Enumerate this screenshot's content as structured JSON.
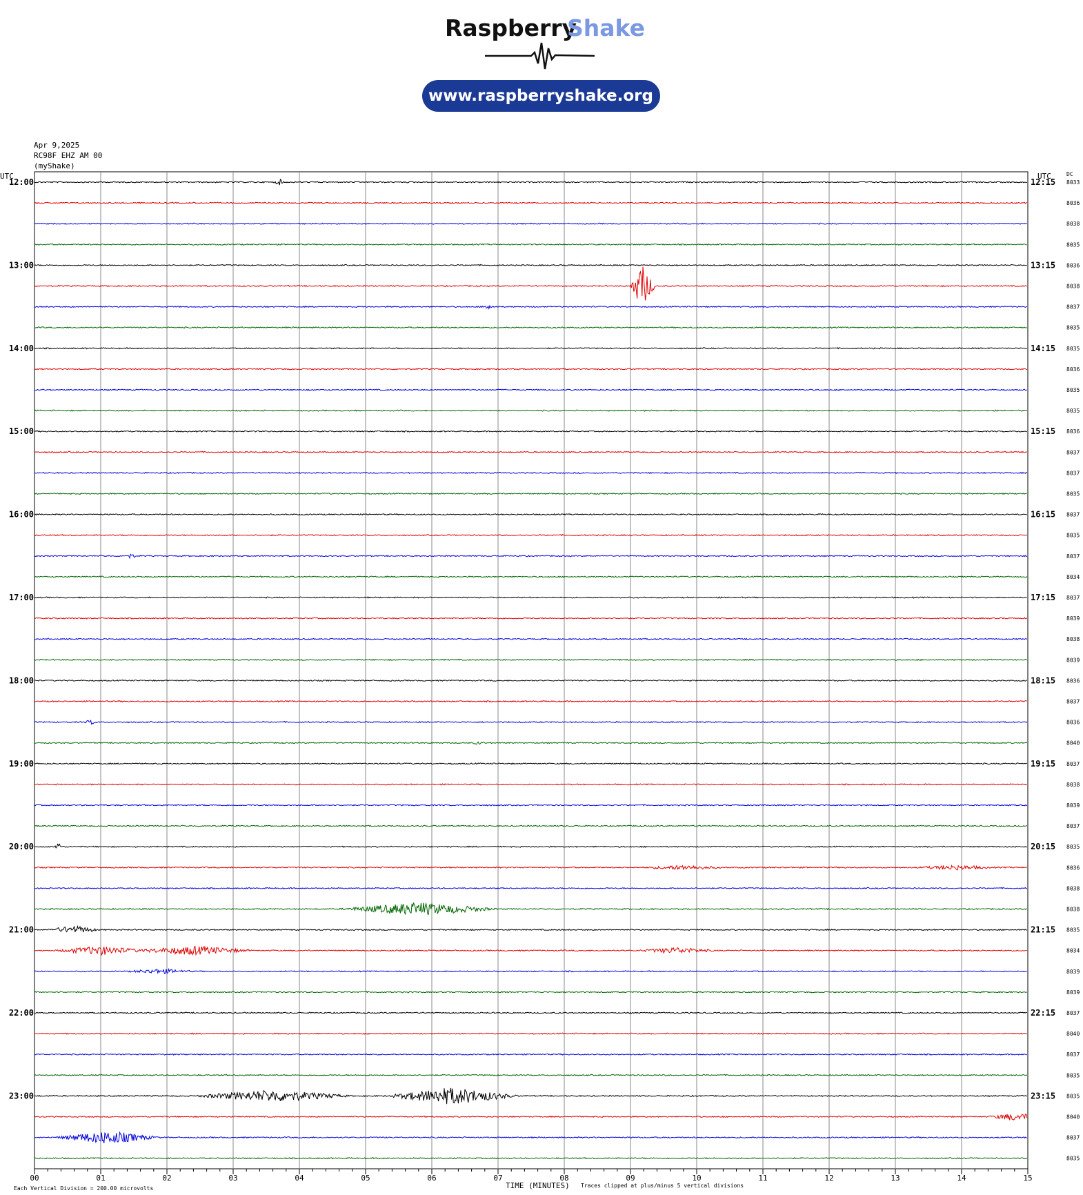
{
  "header": {
    "brand_word1": "Raspberry",
    "brand_word2": "Shake",
    "url": "www.raspberryshake.org",
    "brand_color_dark": "#111111",
    "brand_color_accent": "#7b98e2",
    "url_button_color": "#1b3a96"
  },
  "station": {
    "date": "Apr 9,2025",
    "channel": "RC98F EHZ AM 00",
    "network": "(myShake)"
  },
  "footer": {
    "vertical_division": "Each Vertical Division =  200.00 microvolts",
    "xlabel": "TIME (MINUTES)",
    "clip_note": "Traces clipped at plus/minus 5 vertical divisions"
  },
  "chart_data": {
    "type": "line",
    "title": "",
    "xlabel": "TIME (MINUTES)",
    "ylabel": "",
    "left_axis_title": "UTC",
    "right_axis_title": "UTC",
    "dc_header": "DC",
    "xlim": [
      0,
      15
    ],
    "x_tick_labels": [
      "00",
      "01",
      "02",
      "03",
      "04",
      "05",
      "06",
      "07",
      "08",
      "09",
      "10",
      "11",
      "12",
      "13",
      "14",
      "15"
    ],
    "grid": true,
    "trace_colors": [
      "#000000",
      "#dd0000",
      "#0000dd",
      "#006600"
    ],
    "hour_labels_left": [
      "12:00",
      "13:00",
      "14:00",
      "15:00",
      "16:00",
      "17:00",
      "18:00",
      "19:00",
      "20:00",
      "21:00",
      "22:00",
      "23:00"
    ],
    "hour_labels_right": [
      "12:15",
      "13:15",
      "14:15",
      "15:15",
      "16:15",
      "17:15",
      "18:15",
      "19:15",
      "20:15",
      "21:15",
      "22:15",
      "23:15"
    ],
    "dc_values": [
      "8033",
      "8036",
      "8038",
      "8035",
      "8036",
      "8038",
      "8037",
      "8035",
      "8035",
      "8036",
      "8035",
      "8035",
      "8036",
      "8037",
      "8037",
      "8035",
      "8037",
      "8035",
      "8037",
      "8034",
      "8037",
      "8039",
      "8038",
      "8039",
      "8036",
      "8037",
      "8036",
      "8040",
      "8037",
      "8038",
      "8039",
      "8037",
      "8035",
      "8036",
      "8038",
      "8038",
      "8035",
      "8034",
      "8039",
      "8039",
      "8037",
      "8040",
      "8037",
      "8035",
      "8035",
      "8040",
      "8037",
      "8035"
    ],
    "events": [
      {
        "trace": 0,
        "minute": 3.7,
        "amp": 3.5,
        "dur": 0.1
      },
      {
        "trace": 5,
        "minute": 9.18,
        "amp": 30,
        "dur": 0.2
      },
      {
        "trace": 6,
        "minute": 6.85,
        "amp": 4,
        "dur": 0.1
      },
      {
        "trace": 18,
        "minute": 1.45,
        "amp": 3,
        "dur": 0.1
      },
      {
        "trace": 26,
        "minute": 0.85,
        "amp": 3,
        "dur": 0.1
      },
      {
        "trace": 27,
        "minute": 6.7,
        "amp": 2,
        "dur": 0.1
      },
      {
        "trace": 32,
        "minute": 0.35,
        "amp": 16,
        "dur": 0.04
      },
      {
        "trace": 33,
        "minute": 9.8,
        "amp": 3,
        "dur": 0.6
      },
      {
        "trace": 33,
        "minute": 13.9,
        "amp": 3,
        "dur": 0.6
      },
      {
        "trace": 35,
        "minute": 5.8,
        "amp": 9,
        "dur": 1.2
      },
      {
        "trace": 36,
        "minute": 0.6,
        "amp": 5,
        "dur": 0.4
      },
      {
        "trace": 37,
        "minute": 1.0,
        "amp": 6,
        "dur": 0.7
      },
      {
        "trace": 37,
        "minute": 2.4,
        "amp": 6,
        "dur": 0.9
      },
      {
        "trace": 37,
        "minute": 9.7,
        "amp": 4,
        "dur": 0.6
      },
      {
        "trace": 38,
        "minute": 1.9,
        "amp": 3,
        "dur": 0.5
      },
      {
        "trace": 44,
        "minute": 3.6,
        "amp": 8,
        "dur": 1.2
      },
      {
        "trace": 44,
        "minute": 6.3,
        "amp": 12,
        "dur": 1.0
      },
      {
        "trace": 45,
        "minute": 14.8,
        "amp": 5,
        "dur": 0.4
      },
      {
        "trace": 46,
        "minute": 1.1,
        "amp": 9,
        "dur": 0.8
      }
    ]
  }
}
